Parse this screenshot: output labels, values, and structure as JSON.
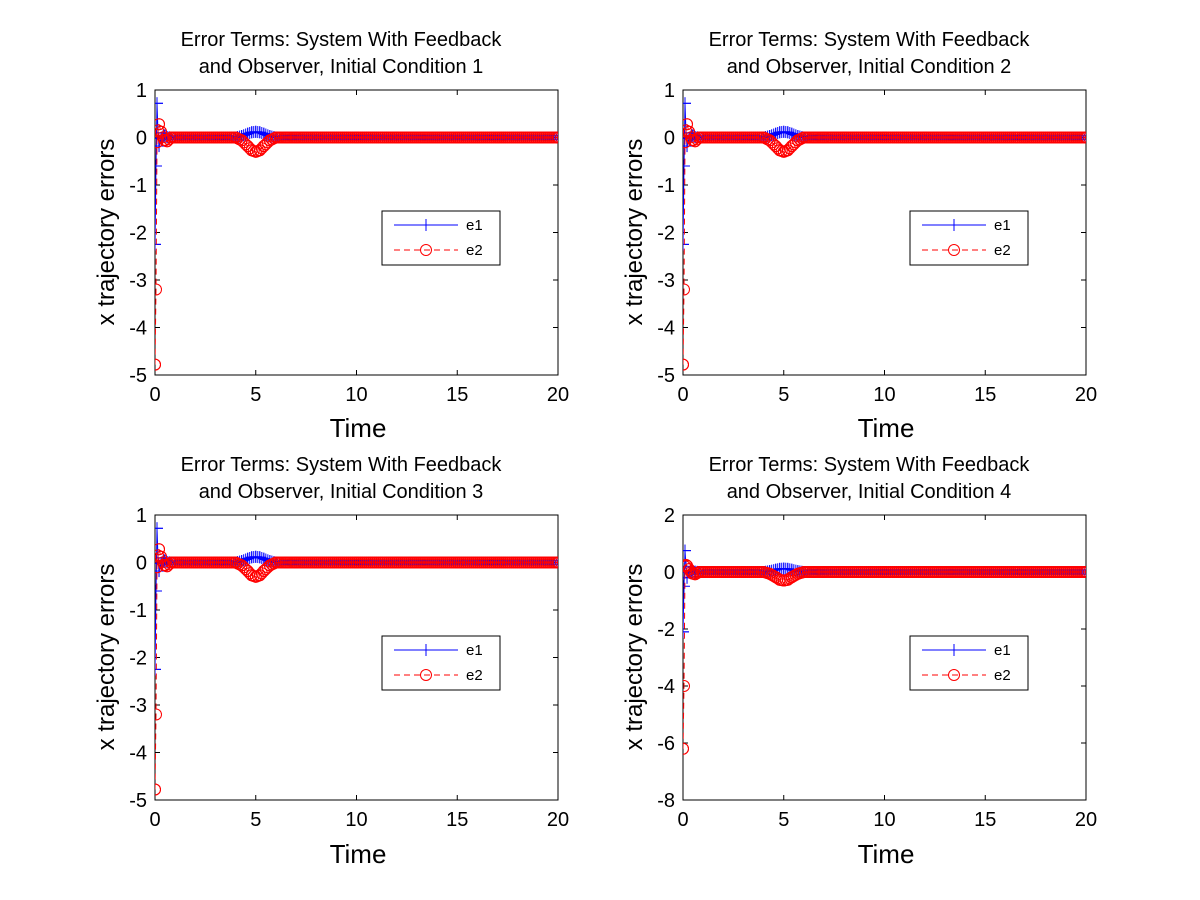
{
  "figure": {
    "background": "#ffffff"
  },
  "colors": {
    "e1": "#0000ff",
    "e2": "#ff0000",
    "axes": "#000000"
  },
  "chart_data": [
    {
      "type": "line",
      "title": [
        "Error Terms:  System With Feedback",
        "and Observer, Initial Condition 1"
      ],
      "xlabel": "Time",
      "ylabel": "x trajectory errors",
      "xlim": [
        0,
        20
      ],
      "ylim": [
        -5,
        1
      ],
      "xticks": [
        0,
        5,
        10,
        15,
        20
      ],
      "yticks": [
        1,
        0,
        -1,
        -2,
        -3,
        -4,
        -5
      ],
      "grid": false,
      "legend": {
        "placement": "center-right",
        "entries": [
          "e1",
          "e2"
        ]
      },
      "series": [
        {
          "name": "e1",
          "color": "#0000ff",
          "line": "solid",
          "marker": "plus",
          "x": [
            0,
            0.05,
            0.1,
            0.15,
            0.2,
            0.3,
            0.45,
            0.6,
            0.8,
            1.0,
            1.5,
            2,
            3,
            4,
            4.3,
            4.6,
            4.8,
            5.0,
            5.2,
            5.4,
            5.7,
            6.0,
            6.5,
            7,
            8,
            10,
            12,
            15,
            17,
            20
          ],
          "y": [
            -2.25,
            -0.6,
            0.72,
            0.1,
            -0.18,
            -0.02,
            0.05,
            0.01,
            0,
            0,
            0,
            0,
            0,
            0,
            0.03,
            0.08,
            0.11,
            0.12,
            0.11,
            0.08,
            0.03,
            0.0,
            0,
            0,
            0,
            0,
            0,
            0,
            0,
            0
          ]
        },
        {
          "name": "e2",
          "color": "#ff0000",
          "line": "dashed",
          "marker": "circle",
          "x": [
            0,
            0.05,
            0.1,
            0.15,
            0.2,
            0.3,
            0.45,
            0.6,
            0.8,
            1.0,
            1.5,
            2,
            3,
            4,
            4.3,
            4.6,
            4.8,
            5.0,
            5.2,
            5.4,
            5.7,
            6.0,
            6.5,
            7,
            8,
            10,
            12,
            15,
            17,
            20
          ],
          "y": [
            -4.78,
            -3.2,
            -0.1,
            0.15,
            0.28,
            0.12,
            -0.05,
            -0.08,
            0,
            0,
            0,
            0,
            0,
            0,
            -0.06,
            -0.18,
            -0.27,
            -0.3,
            -0.27,
            -0.18,
            -0.06,
            0.0,
            0,
            0,
            0,
            0,
            0,
            0,
            0,
            0
          ]
        }
      ]
    },
    {
      "type": "line",
      "title": [
        "Error Terms:  System With Feedback",
        "and Observer, Initial Condition 2"
      ],
      "xlabel": "Time",
      "ylabel": "x trajectory errors",
      "xlim": [
        0,
        20
      ],
      "ylim": [
        -5,
        1
      ],
      "xticks": [
        0,
        5,
        10,
        15,
        20
      ],
      "yticks": [
        1,
        0,
        -1,
        -2,
        -3,
        -4,
        -5
      ],
      "grid": false,
      "legend": {
        "placement": "center-right",
        "entries": [
          "e1",
          "e2"
        ]
      },
      "series": [
        {
          "name": "e1",
          "color": "#0000ff",
          "line": "solid",
          "marker": "plus",
          "x": [
            0,
            0.05,
            0.1,
            0.15,
            0.2,
            0.3,
            0.45,
            0.6,
            0.8,
            1.0,
            1.5,
            2,
            3,
            4,
            4.3,
            4.6,
            4.8,
            5.0,
            5.2,
            5.4,
            5.7,
            6.0,
            6.5,
            7,
            8,
            10,
            12,
            15,
            17,
            20
          ],
          "y": [
            -2.25,
            -0.6,
            0.72,
            0.1,
            -0.18,
            -0.02,
            0.05,
            0.01,
            0,
            0,
            0,
            0,
            0,
            0,
            0.03,
            0.08,
            0.11,
            0.12,
            0.11,
            0.08,
            0.03,
            0.0,
            0,
            0,
            0,
            0,
            0,
            0,
            0,
            0
          ]
        },
        {
          "name": "e2",
          "color": "#ff0000",
          "line": "dashed",
          "marker": "circle",
          "x": [
            0,
            0.05,
            0.1,
            0.15,
            0.2,
            0.3,
            0.45,
            0.6,
            0.8,
            1.0,
            1.5,
            2,
            3,
            4,
            4.3,
            4.6,
            4.8,
            5.0,
            5.2,
            5.4,
            5.7,
            6.0,
            6.5,
            7,
            8,
            10,
            12,
            15,
            17,
            20
          ],
          "y": [
            -4.78,
            -3.2,
            -0.1,
            0.15,
            0.28,
            0.12,
            -0.05,
            -0.08,
            0,
            0,
            0,
            0,
            0,
            0,
            -0.06,
            -0.18,
            -0.27,
            -0.3,
            -0.27,
            -0.18,
            -0.06,
            0.0,
            0,
            0,
            0,
            0,
            0,
            0,
            0,
            0
          ]
        }
      ]
    },
    {
      "type": "line",
      "title": [
        "Error Terms:  System With Feedback",
        "and Observer, Initial Condition 3"
      ],
      "xlabel": "Time",
      "ylabel": "x trajectory errors",
      "xlim": [
        0,
        20
      ],
      "ylim": [
        -5,
        1
      ],
      "xticks": [
        0,
        5,
        10,
        15,
        20
      ],
      "yticks": [
        1,
        0,
        -1,
        -2,
        -3,
        -4,
        -5
      ],
      "grid": false,
      "legend": {
        "placement": "center-right",
        "entries": [
          "e1",
          "e2"
        ]
      },
      "series": [
        {
          "name": "e1",
          "color": "#0000ff",
          "line": "solid",
          "marker": "plus",
          "x": [
            0,
            0.05,
            0.1,
            0.15,
            0.2,
            0.3,
            0.45,
            0.6,
            0.8,
            1.0,
            1.5,
            2,
            3,
            4,
            4.3,
            4.6,
            4.8,
            5.0,
            5.2,
            5.4,
            5.7,
            6.0,
            6.5,
            7,
            8,
            10,
            12,
            15,
            17,
            20
          ],
          "y": [
            -2.25,
            -0.6,
            0.72,
            0.1,
            -0.18,
            -0.02,
            0.05,
            0.01,
            0,
            0,
            0,
            0,
            0,
            0,
            0.03,
            0.08,
            0.11,
            0.12,
            0.11,
            0.08,
            0.03,
            0.0,
            0,
            0,
            0,
            0,
            0,
            0,
            0,
            0
          ]
        },
        {
          "name": "e2",
          "color": "#ff0000",
          "line": "dashed",
          "marker": "circle",
          "x": [
            0,
            0.05,
            0.1,
            0.15,
            0.2,
            0.3,
            0.45,
            0.6,
            0.8,
            1.0,
            1.5,
            2,
            3,
            4,
            4.3,
            4.6,
            4.8,
            5.0,
            5.2,
            5.4,
            5.7,
            6.0,
            6.5,
            7,
            8,
            10,
            12,
            15,
            17,
            20
          ],
          "y": [
            -4.78,
            -3.2,
            -0.1,
            0.15,
            0.28,
            0.12,
            -0.05,
            -0.08,
            0,
            0,
            0,
            0,
            0,
            0,
            -0.06,
            -0.18,
            -0.27,
            -0.3,
            -0.27,
            -0.18,
            -0.06,
            0.0,
            0,
            0,
            0,
            0,
            0,
            0,
            0,
            0
          ]
        }
      ]
    },
    {
      "type": "line",
      "title": [
        "Error Terms:  System With Feedback",
        "and Observer, Initial Condition 4"
      ],
      "xlabel": "Time",
      "ylabel": "x trajectory errors",
      "xlim": [
        0,
        20
      ],
      "ylim": [
        -8,
        2
      ],
      "xticks": [
        0,
        5,
        10,
        15,
        20
      ],
      "yticks": [
        2,
        0,
        -2,
        -4,
        -6,
        -8
      ],
      "grid": false,
      "legend": {
        "placement": "center-right",
        "entries": [
          "e1",
          "e2"
        ]
      },
      "series": [
        {
          "name": "e1",
          "color": "#0000ff",
          "line": "solid",
          "marker": "plus",
          "x": [
            0,
            0.05,
            0.1,
            0.15,
            0.2,
            0.3,
            0.45,
            0.6,
            0.8,
            1.0,
            1.5,
            2,
            3,
            4,
            4.3,
            4.6,
            4.8,
            5.0,
            5.2,
            5.4,
            5.7,
            6.0,
            6.5,
            7,
            8,
            10,
            12,
            15,
            17,
            20
          ],
          "y": [
            -2.1,
            -0.5,
            0.75,
            0.2,
            -0.2,
            -0.02,
            0.05,
            0.01,
            0,
            0,
            0,
            0,
            0,
            0,
            0.03,
            0.08,
            0.11,
            0.12,
            0.11,
            0.08,
            0.03,
            0.0,
            0,
            0,
            0,
            0,
            0,
            0,
            0,
            0
          ]
        },
        {
          "name": "e2",
          "color": "#ff0000",
          "line": "dashed",
          "marker": "circle",
          "x": [
            0,
            0.05,
            0.1,
            0.15,
            0.2,
            0.3,
            0.45,
            0.6,
            0.8,
            1.0,
            1.5,
            2,
            3,
            4,
            4.3,
            4.6,
            4.8,
            5.0,
            5.2,
            5.4,
            5.7,
            6.0,
            6.5,
            7,
            8,
            10,
            12,
            15,
            17,
            20
          ],
          "y": [
            -6.2,
            -4.0,
            0.2,
            0.25,
            0.22,
            0.1,
            -0.05,
            -0.08,
            0,
            0,
            0,
            0,
            0,
            0,
            -0.06,
            -0.18,
            -0.27,
            -0.3,
            -0.27,
            -0.18,
            -0.06,
            0.0,
            0,
            0,
            0,
            0,
            0,
            0,
            0,
            0
          ]
        }
      ]
    }
  ]
}
